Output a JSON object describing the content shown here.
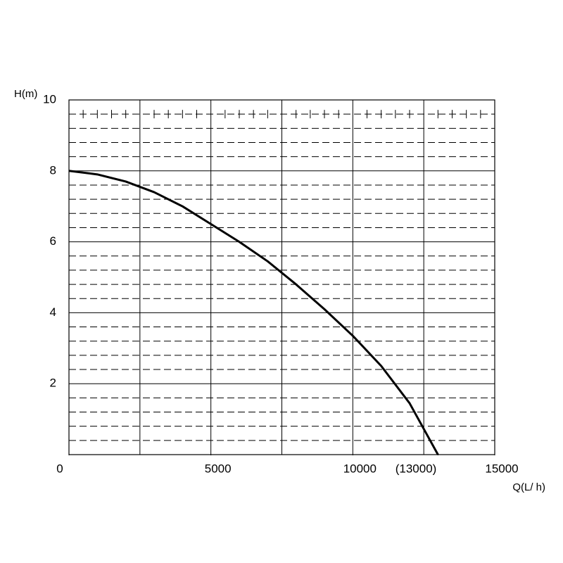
{
  "chart_data": {
    "type": "line",
    "ylabel": "H(m)",
    "xlabel": "Q(L/ h)",
    "series": [
      {
        "color": "#000000",
        "x": [
          0,
          1000,
          2000,
          3000,
          4000,
          5000,
          6000,
          7000,
          8000,
          9000,
          10000,
          11000,
          12000,
          13000
        ],
        "values": [
          8.0,
          7.9,
          7.7,
          7.4,
          7.0,
          6.5,
          6.0,
          5.45,
          4.8,
          4.1,
          3.35,
          2.5,
          1.45,
          0
        ]
      }
    ],
    "xlim": [
      0,
      15000
    ],
    "ylim": [
      0,
      10
    ],
    "xticks": [
      0,
      5000,
      10000,
      {
        "value": 13000,
        "label": "(13000)"
      },
      15000
    ],
    "yticks": [
      2,
      4,
      6,
      8,
      10
    ],
    "xgrid": [
      2500,
      5000,
      7500,
      10000,
      12500
    ],
    "grid": true
  }
}
